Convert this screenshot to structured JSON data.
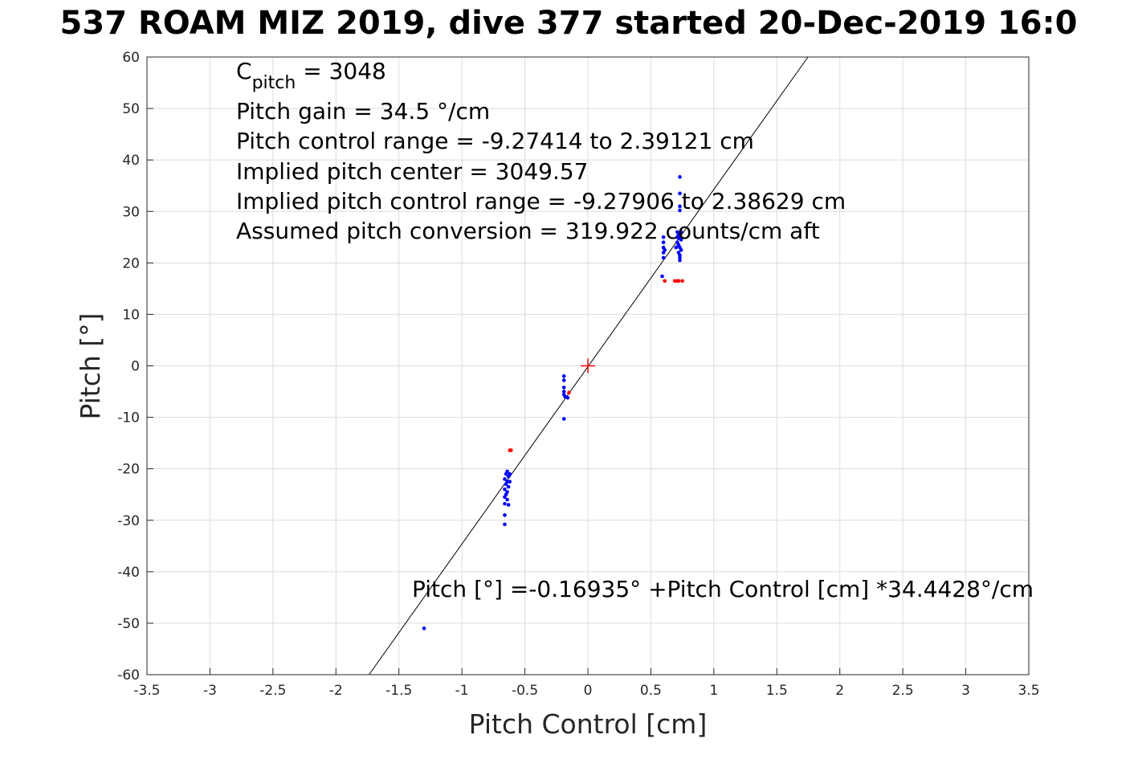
{
  "chart_data": {
    "type": "scatter",
    "title": "537 ROAM MIZ 2019, dive 377 started 20-Dec-2019 16:0",
    "xlabel": "Pitch Control [cm]",
    "ylabel": "Pitch [°]",
    "xlim": [
      -3.5,
      3.5
    ],
    "ylim": [
      -60,
      60
    ],
    "xticks": [
      -3.5,
      -3,
      -2.5,
      -2,
      -1.5,
      -1,
      -0.5,
      0,
      0.5,
      1,
      1.5,
      2,
      2.5,
      3,
      3.5
    ],
    "yticks": [
      -60,
      -50,
      -40,
      -30,
      -20,
      -10,
      0,
      10,
      20,
      30,
      40,
      50,
      60
    ],
    "grid": true,
    "annotations": {
      "c_pitch_main": "C",
      "c_pitch_sub": "pitch",
      "c_pitch_value": " = 3048",
      "lines": [
        "Pitch gain = 34.5 °/cm",
        "Pitch control range = -9.27414 to 2.39121 cm",
        "Implied pitch center = 3049.57",
        "Implied pitch control range = -9.27906 to 2.38629 cm",
        "Assumed pitch conversion = 319.922 counts/cm aft"
      ],
      "fit_equation": "Pitch [°] =-0.16935° +Pitch Control [cm] *34.4428°/cm"
    },
    "fit_line": {
      "intercept": -0.16935,
      "slope": 34.4428,
      "color": "#000000"
    },
    "center_marker": {
      "x": 0,
      "y": 0,
      "color": "#ff0000"
    },
    "series": [
      {
        "name": "blue",
        "color": "#0000ff",
        "points": [
          [
            0.73,
            36.7
          ],
          [
            0.73,
            33.5
          ],
          [
            0.73,
            31
          ],
          [
            0.73,
            30.2
          ],
          [
            0.71,
            26
          ],
          [
            0.72,
            25.5
          ],
          [
            0.73,
            25
          ],
          [
            0.74,
            24.5
          ],
          [
            0.71,
            24
          ],
          [
            0.72,
            23.5
          ],
          [
            0.73,
            23
          ],
          [
            0.74,
            22.5
          ],
          [
            0.72,
            22
          ],
          [
            0.73,
            21.5
          ],
          [
            0.73,
            21
          ],
          [
            0.73,
            20.5
          ],
          [
            0.71,
            25
          ],
          [
            0.74,
            26
          ],
          [
            0.7,
            23
          ],
          [
            0.72,
            24.8
          ],
          [
            0.6,
            25
          ],
          [
            0.6,
            24
          ],
          [
            0.6,
            23
          ],
          [
            0.61,
            22.5
          ],
          [
            0.6,
            22
          ],
          [
            0.6,
            21
          ],
          [
            0.59,
            17.4
          ],
          [
            -0.19,
            -2
          ],
          [
            -0.19,
            -2.8
          ],
          [
            -0.19,
            -4.2
          ],
          [
            -0.19,
            -5
          ],
          [
            -0.19,
            -5.6
          ],
          [
            -0.18,
            -6
          ],
          [
            -0.16,
            -6.2
          ],
          [
            -0.19,
            -10.3
          ],
          [
            -0.64,
            -20.5
          ],
          [
            -0.65,
            -21
          ],
          [
            -0.63,
            -21.5
          ],
          [
            -0.66,
            -22
          ],
          [
            -0.64,
            -22.5
          ],
          [
            -0.65,
            -23
          ],
          [
            -0.63,
            -23.5
          ],
          [
            -0.66,
            -24
          ],
          [
            -0.64,
            -24.5
          ],
          [
            -0.65,
            -25
          ],
          [
            -0.66,
            -25.5
          ],
          [
            -0.64,
            -26
          ],
          [
            -0.66,
            -26.8
          ],
          [
            -0.63,
            -27
          ],
          [
            -0.62,
            -21
          ],
          [
            -0.62,
            -22.5
          ],
          [
            -0.66,
            -29
          ],
          [
            -0.66,
            -30.8
          ],
          [
            -1.3,
            -51
          ]
        ]
      },
      {
        "name": "red",
        "color": "#ff0000",
        "points": [
          [
            0.61,
            16.5
          ],
          [
            0.69,
            16.5
          ],
          [
            0.71,
            16.5
          ],
          [
            0.72,
            16.5
          ],
          [
            0.75,
            16.5
          ],
          [
            -0.15,
            -5.2
          ],
          [
            -0.62,
            -16.4
          ],
          [
            -0.61,
            -16.4
          ]
        ]
      }
    ]
  }
}
